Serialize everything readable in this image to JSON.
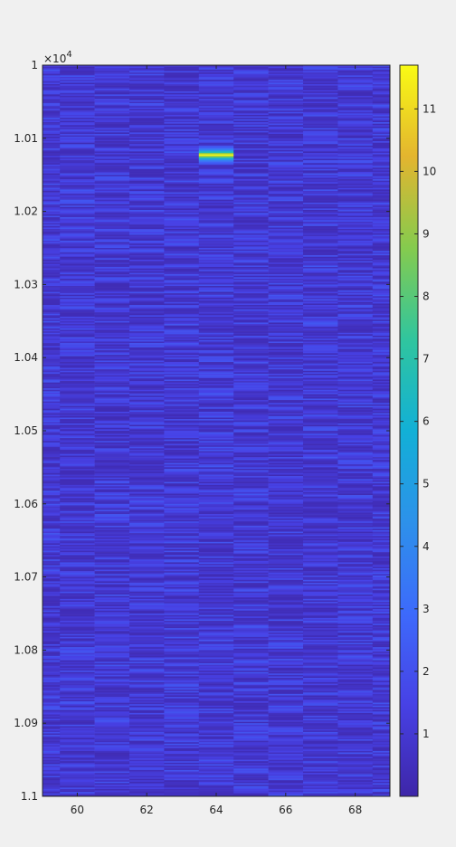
{
  "chart_data": {
    "type": "heatmap",
    "title": "",
    "xlabel": "",
    "ylabel": "",
    "x_range": [
      59,
      69
    ],
    "y_range": [
      10000,
      11000
    ],
    "y_exponent_label": "×10",
    "y_exponent_power": "4",
    "x_ticks": [
      {
        "value": 60,
        "label": "60"
      },
      {
        "value": 62,
        "label": "62"
      },
      {
        "value": 64,
        "label": "64"
      },
      {
        "value": 66,
        "label": "66"
      },
      {
        "value": 68,
        "label": "68"
      }
    ],
    "y_ticks": [
      {
        "value": 10000,
        "label": "1"
      },
      {
        "value": 10100,
        "label": "1.01"
      },
      {
        "value": 10200,
        "label": "1.02"
      },
      {
        "value": 10300,
        "label": "1.03"
      },
      {
        "value": 10400,
        "label": "1.04"
      },
      {
        "value": 10500,
        "label": "1.05"
      },
      {
        "value": 10600,
        "label": "1.06"
      },
      {
        "value": 10700,
        "label": "1.07"
      },
      {
        "value": 10800,
        "label": "1.08"
      },
      {
        "value": 10900,
        "label": "1.09"
      },
      {
        "value": 11000,
        "label": "1.1"
      }
    ],
    "columns": [
      59,
      60,
      61,
      62,
      63,
      64,
      65,
      66,
      67,
      68,
      69
    ],
    "background_value_range": [
      0.3,
      2.2
    ],
    "peak": {
      "column": 64,
      "y_center": 10123,
      "y_halfwidth": 14,
      "max_value": 11.7
    },
    "colormap": "parula",
    "colorbar": {
      "range": [
        0,
        11.7
      ],
      "ticks": [
        {
          "value": 1,
          "label": "1"
        },
        {
          "value": 2,
          "label": "2"
        },
        {
          "value": 3,
          "label": "3"
        },
        {
          "value": 4,
          "label": "4"
        },
        {
          "value": 5,
          "label": "5"
        },
        {
          "value": 6,
          "label": "6"
        },
        {
          "value": 7,
          "label": "7"
        },
        {
          "value": 8,
          "label": "8"
        },
        {
          "value": 9,
          "label": "9"
        },
        {
          "value": 10,
          "label": "10"
        },
        {
          "value": 11,
          "label": "11"
        }
      ]
    },
    "grid": false,
    "legend": "none"
  }
}
